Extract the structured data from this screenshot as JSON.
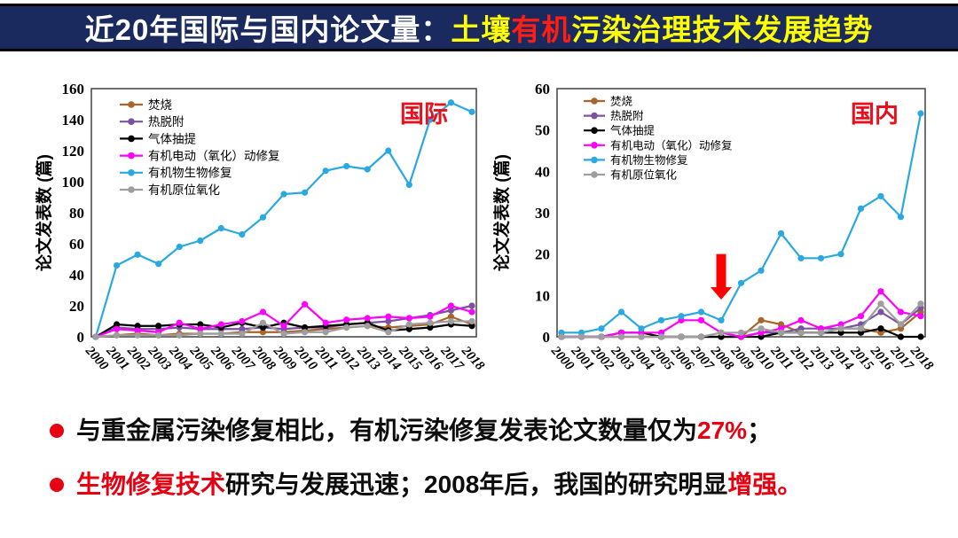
{
  "header": {
    "title_prefix": "近20年国际与国内论文量：",
    "title_highlights": [
      {
        "text": "土壤",
        "color": "#ffff00"
      },
      {
        "text": "有机",
        "color": "#ff1e14"
      },
      {
        "text": "污染治理技术发展趋势",
        "color": "#ffff00"
      }
    ],
    "bar_color": "#1b2a5e"
  },
  "chart_data": [
    {
      "type": "line",
      "region_label": "国际",
      "ylabel": "论文发表数 (篇)",
      "ylim": [
        0,
        160
      ],
      "ytick_step": 20,
      "grid": false,
      "legend_position": "top-left",
      "x": [
        "2000",
        "2001",
        "2002",
        "2003",
        "2004",
        "2005",
        "2006",
        "2007",
        "2008",
        "2009",
        "2010",
        "2011",
        "2012",
        "2013",
        "2014",
        "2015",
        "2016",
        "2017",
        "2018"
      ],
      "series": [
        {
          "name": "焚烧",
          "color": "#a8642a",
          "values": [
            0,
            1,
            2,
            1,
            2,
            2,
            2,
            3,
            3,
            3,
            4,
            5,
            6,
            7,
            6,
            7,
            8,
            13,
            8
          ]
        },
        {
          "name": "热脱附",
          "color": "#7a52a0",
          "values": [
            0,
            6,
            5,
            5,
            6,
            5,
            5,
            5,
            6,
            5,
            6,
            6,
            8,
            9,
            10,
            12,
            14,
            17,
            20
          ]
        },
        {
          "name": "气体抽提",
          "color": "#000000",
          "values": [
            0,
            8,
            7,
            7,
            8,
            8,
            6,
            9,
            6,
            9,
            6,
            7,
            8,
            9,
            4,
            5,
            6,
            8,
            7
          ]
        },
        {
          "name": "有机电动（氧化）动修复",
          "color": "#ff00ff",
          "values": [
            0,
            5,
            4,
            3,
            9,
            5,
            8,
            10,
            16,
            7,
            21,
            9,
            11,
            12,
            13,
            12,
            13,
            20,
            16
          ]
        },
        {
          "name": "有机物生物修复",
          "color": "#29a9e0",
          "values": [
            0,
            46,
            53,
            47,
            58,
            62,
            70,
            66,
            77,
            92,
            93,
            107,
            110,
            108,
            120,
            98,
            140,
            151,
            145
          ]
        },
        {
          "name": "有机原位氧化",
          "color": "#9e9e9e",
          "values": [
            0,
            1,
            1,
            1,
            1,
            2,
            2,
            2,
            9,
            2,
            3,
            3,
            6,
            7,
            3,
            8,
            9,
            10,
            10
          ]
        }
      ]
    },
    {
      "type": "line",
      "region_label": "国内",
      "ylabel": "论文发表数 (篇)",
      "ylim": [
        0,
        60
      ],
      "ytick_step": 10,
      "grid": false,
      "legend_position": "top-left",
      "annotation": {
        "type": "down-arrow",
        "x": "2008",
        "from": 20,
        "to": 9,
        "color": "#ff0000"
      },
      "x": [
        "2000",
        "2001",
        "2002",
        "2003",
        "2004",
        "2005",
        "2006",
        "2007",
        "2008",
        "2009",
        "2010",
        "2011",
        "2012",
        "2013",
        "2014",
        "2015",
        "2016",
        "2017",
        "2018"
      ],
      "series": [
        {
          "name": "焚烧",
          "color": "#a8642a",
          "values": [
            0,
            0,
            0,
            0,
            0,
            0,
            0,
            0,
            0,
            0,
            4,
            3,
            1,
            1,
            2,
            2,
            1,
            2,
            6
          ]
        },
        {
          "name": "热脱附",
          "color": "#7a52a0",
          "values": [
            0,
            0,
            0,
            0,
            0,
            0,
            0,
            0,
            0,
            0,
            1,
            1,
            2,
            2,
            2,
            3,
            6,
            3,
            7
          ]
        },
        {
          "name": "气体抽提",
          "color": "#000000",
          "values": [
            0,
            0,
            0,
            1,
            1,
            0,
            0,
            0,
            0,
            0,
            0,
            1,
            1,
            1,
            1,
            1,
            2,
            0,
            0
          ]
        },
        {
          "name": "有机电动（氧化）动修复",
          "color": "#ff00ff",
          "values": [
            0,
            0,
            0,
            1,
            1,
            1,
            4,
            4,
            1,
            0,
            1,
            2,
            4,
            2,
            3,
            5,
            11,
            6,
            5
          ]
        },
        {
          "name": "有机物生物修复",
          "color": "#29a9e0",
          "values": [
            1,
            1,
            2,
            6,
            2,
            4,
            5,
            6,
            4,
            13,
            16,
            25,
            19,
            19,
            20,
            31,
            34,
            29,
            54
          ]
        },
        {
          "name": "有机原位氧化",
          "color": "#9e9e9e",
          "values": [
            0,
            0,
            0,
            0,
            0,
            0,
            0,
            0,
            1,
            1,
            2,
            1,
            1,
            1,
            2,
            2,
            8,
            3,
            8
          ]
        }
      ]
    }
  ],
  "bullets": [
    {
      "segments": [
        {
          "text": "与重金属污染修复相比，有机污染修复发表论文数量仅为",
          "color": "#0d0d0d"
        },
        {
          "text": "27%",
          "color": "#e60012"
        },
        {
          "text": "；",
          "color": "#0d0d0d"
        }
      ]
    },
    {
      "segments": [
        {
          "text": "生物修复技术",
          "color": "#e60012"
        },
        {
          "text": "研究与发展迅速；2008年后，我国的研究明显",
          "color": "#0d0d0d"
        },
        {
          "text": "增强。",
          "color": "#e60012"
        }
      ]
    }
  ]
}
